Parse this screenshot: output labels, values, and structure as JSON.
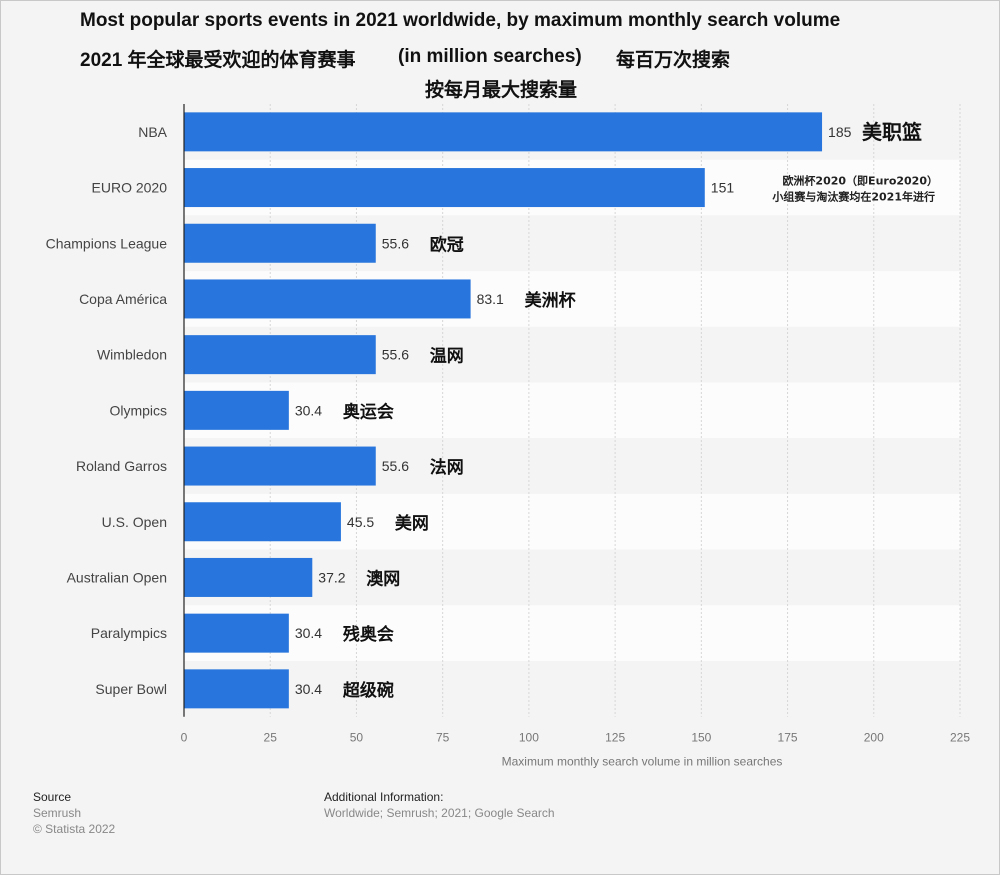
{
  "chart_data": {
    "type": "bar",
    "orientation": "horizontal",
    "title": "Most popular sports events in 2021 worldwide, by maximum monthly search volume",
    "subtitle_cn": "2021 年全球最受欢迎的体育赛事",
    "subtitle_unit": "(in million searches)",
    "subtitle_unit_cn": "每百万次搜索",
    "subtitle_cn_2": "按每月最大搜索量",
    "categories": [
      "NBA",
      "EURO 2020",
      "Champions League",
      "Copa América",
      "Wimbledon",
      "Olympics",
      "Roland Garros",
      "U.S. Open",
      "Australian Open",
      "Paralympics",
      "Super Bowl"
    ],
    "values": [
      185,
      151,
      55.6,
      83.1,
      55.6,
      30.4,
      55.6,
      45.5,
      37.2,
      30.4,
      30.4
    ],
    "annotations_cn": [
      "美职篮",
      "欧洲杯2020（即Euro2020）\n小组赛与淘汰赛均在2021年进行",
      "欧冠",
      "美洲杯",
      "温网",
      "奥运会",
      "法网",
      "美网",
      "澳网",
      "残奥会",
      "超级碗"
    ],
    "xlabel": "Maximum monthly search volume in million searches",
    "xlim": [
      0,
      225
    ],
    "xticks": [
      0,
      25,
      50,
      75,
      100,
      125,
      150,
      175,
      200,
      225
    ],
    "grid": true,
    "bar_color": "#2876dd"
  },
  "footer": {
    "source_label": "Source",
    "source": "Semrush",
    "copyright": "© Statista 2022",
    "info_label": "Additional Information:",
    "info": "Worldwide; Semrush; 2021; Google Search"
  }
}
